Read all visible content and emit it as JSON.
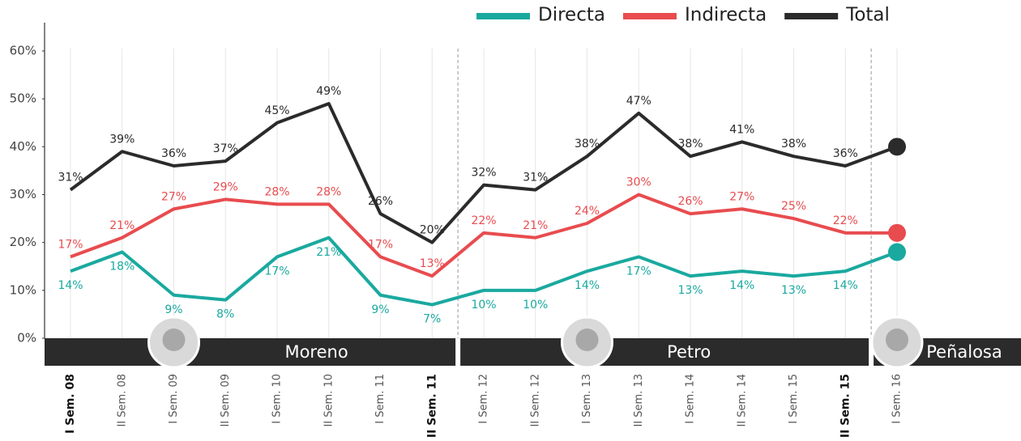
{
  "chart_data": {
    "type": "line",
    "categories": [
      "I Sem. 08",
      "II Sem. 08",
      "I Sem. 09",
      "II Sem. 09",
      "I Sem. 10",
      "II Sem. 10",
      "I Sem. 11",
      "II Sem. 11",
      "I Sem. 12",
      "II Sem. 12",
      "I Sem. 13",
      "II Sem. 13",
      "I Sem. 14",
      "II Sem. 14",
      "I Sem. 15",
      "II Sem. 15",
      "I Sem. 16"
    ],
    "series": [
      {
        "name": "Directa",
        "color": "#1aa99f",
        "values": [
          14,
          18,
          9,
          8,
          17,
          21,
          9,
          7,
          10,
          10,
          14,
          17,
          13,
          14,
          13,
          14,
          18
        ],
        "value_labels": [
          "14%",
          "18%",
          "9%",
          "8%",
          "17%",
          "21%",
          "9%",
          "7%",
          "10%",
          "10%",
          "14%",
          "17%",
          "13%",
          "14%",
          "13%",
          "14%",
          null
        ]
      },
      {
        "name": "Indirecta",
        "color": "#e84c4f",
        "values": [
          17,
          21,
          27,
          29,
          28,
          28,
          17,
          13,
          22,
          21,
          24,
          30,
          26,
          27,
          25,
          22,
          22
        ],
        "value_labels": [
          "17%",
          "21%",
          "27%",
          "29%",
          "28%",
          "28%",
          "17%",
          "13%",
          "22%",
          "21%",
          "24%",
          "30%",
          "26%",
          "27%",
          "25%",
          "22%",
          null
        ]
      },
      {
        "name": "Total",
        "color": "#2b2b2b",
        "values": [
          31,
          39,
          36,
          37,
          45,
          49,
          26,
          20,
          32,
          31,
          38,
          47,
          38,
          41,
          38,
          36,
          40
        ],
        "value_labels": [
          "31%",
          "39%",
          "36%",
          "37%",
          "45%",
          "49%",
          "26%",
          "20%",
          "32%",
          "31%",
          "38%",
          "47%",
          "38%",
          "41%",
          "38%",
          "36%",
          null
        ]
      }
    ],
    "ylim": [
      0,
      60
    ],
    "yticks": [
      {
        "value": 0,
        "label": "0%"
      },
      {
        "value": 10,
        "label": "10%"
      },
      {
        "value": 20,
        "label": "20%"
      },
      {
        "value": 30,
        "label": "30%"
      },
      {
        "value": 40,
        "label": "40%"
      },
      {
        "value": 50,
        "label": "50%"
      },
      {
        "value": 60,
        "label": "60%"
      }
    ],
    "periods": [
      {
        "name": "Moreno",
        "from": "I Sem. 08",
        "to": "II Sem. 11"
      },
      {
        "name": "Petro",
        "from": "I Sem. 12",
        "to": "II Sem. 15"
      },
      {
        "name": "Peñalosa",
        "from": "I Sem. 16",
        "to": "I Sem. 16"
      }
    ],
    "legend": "top-right"
  }
}
